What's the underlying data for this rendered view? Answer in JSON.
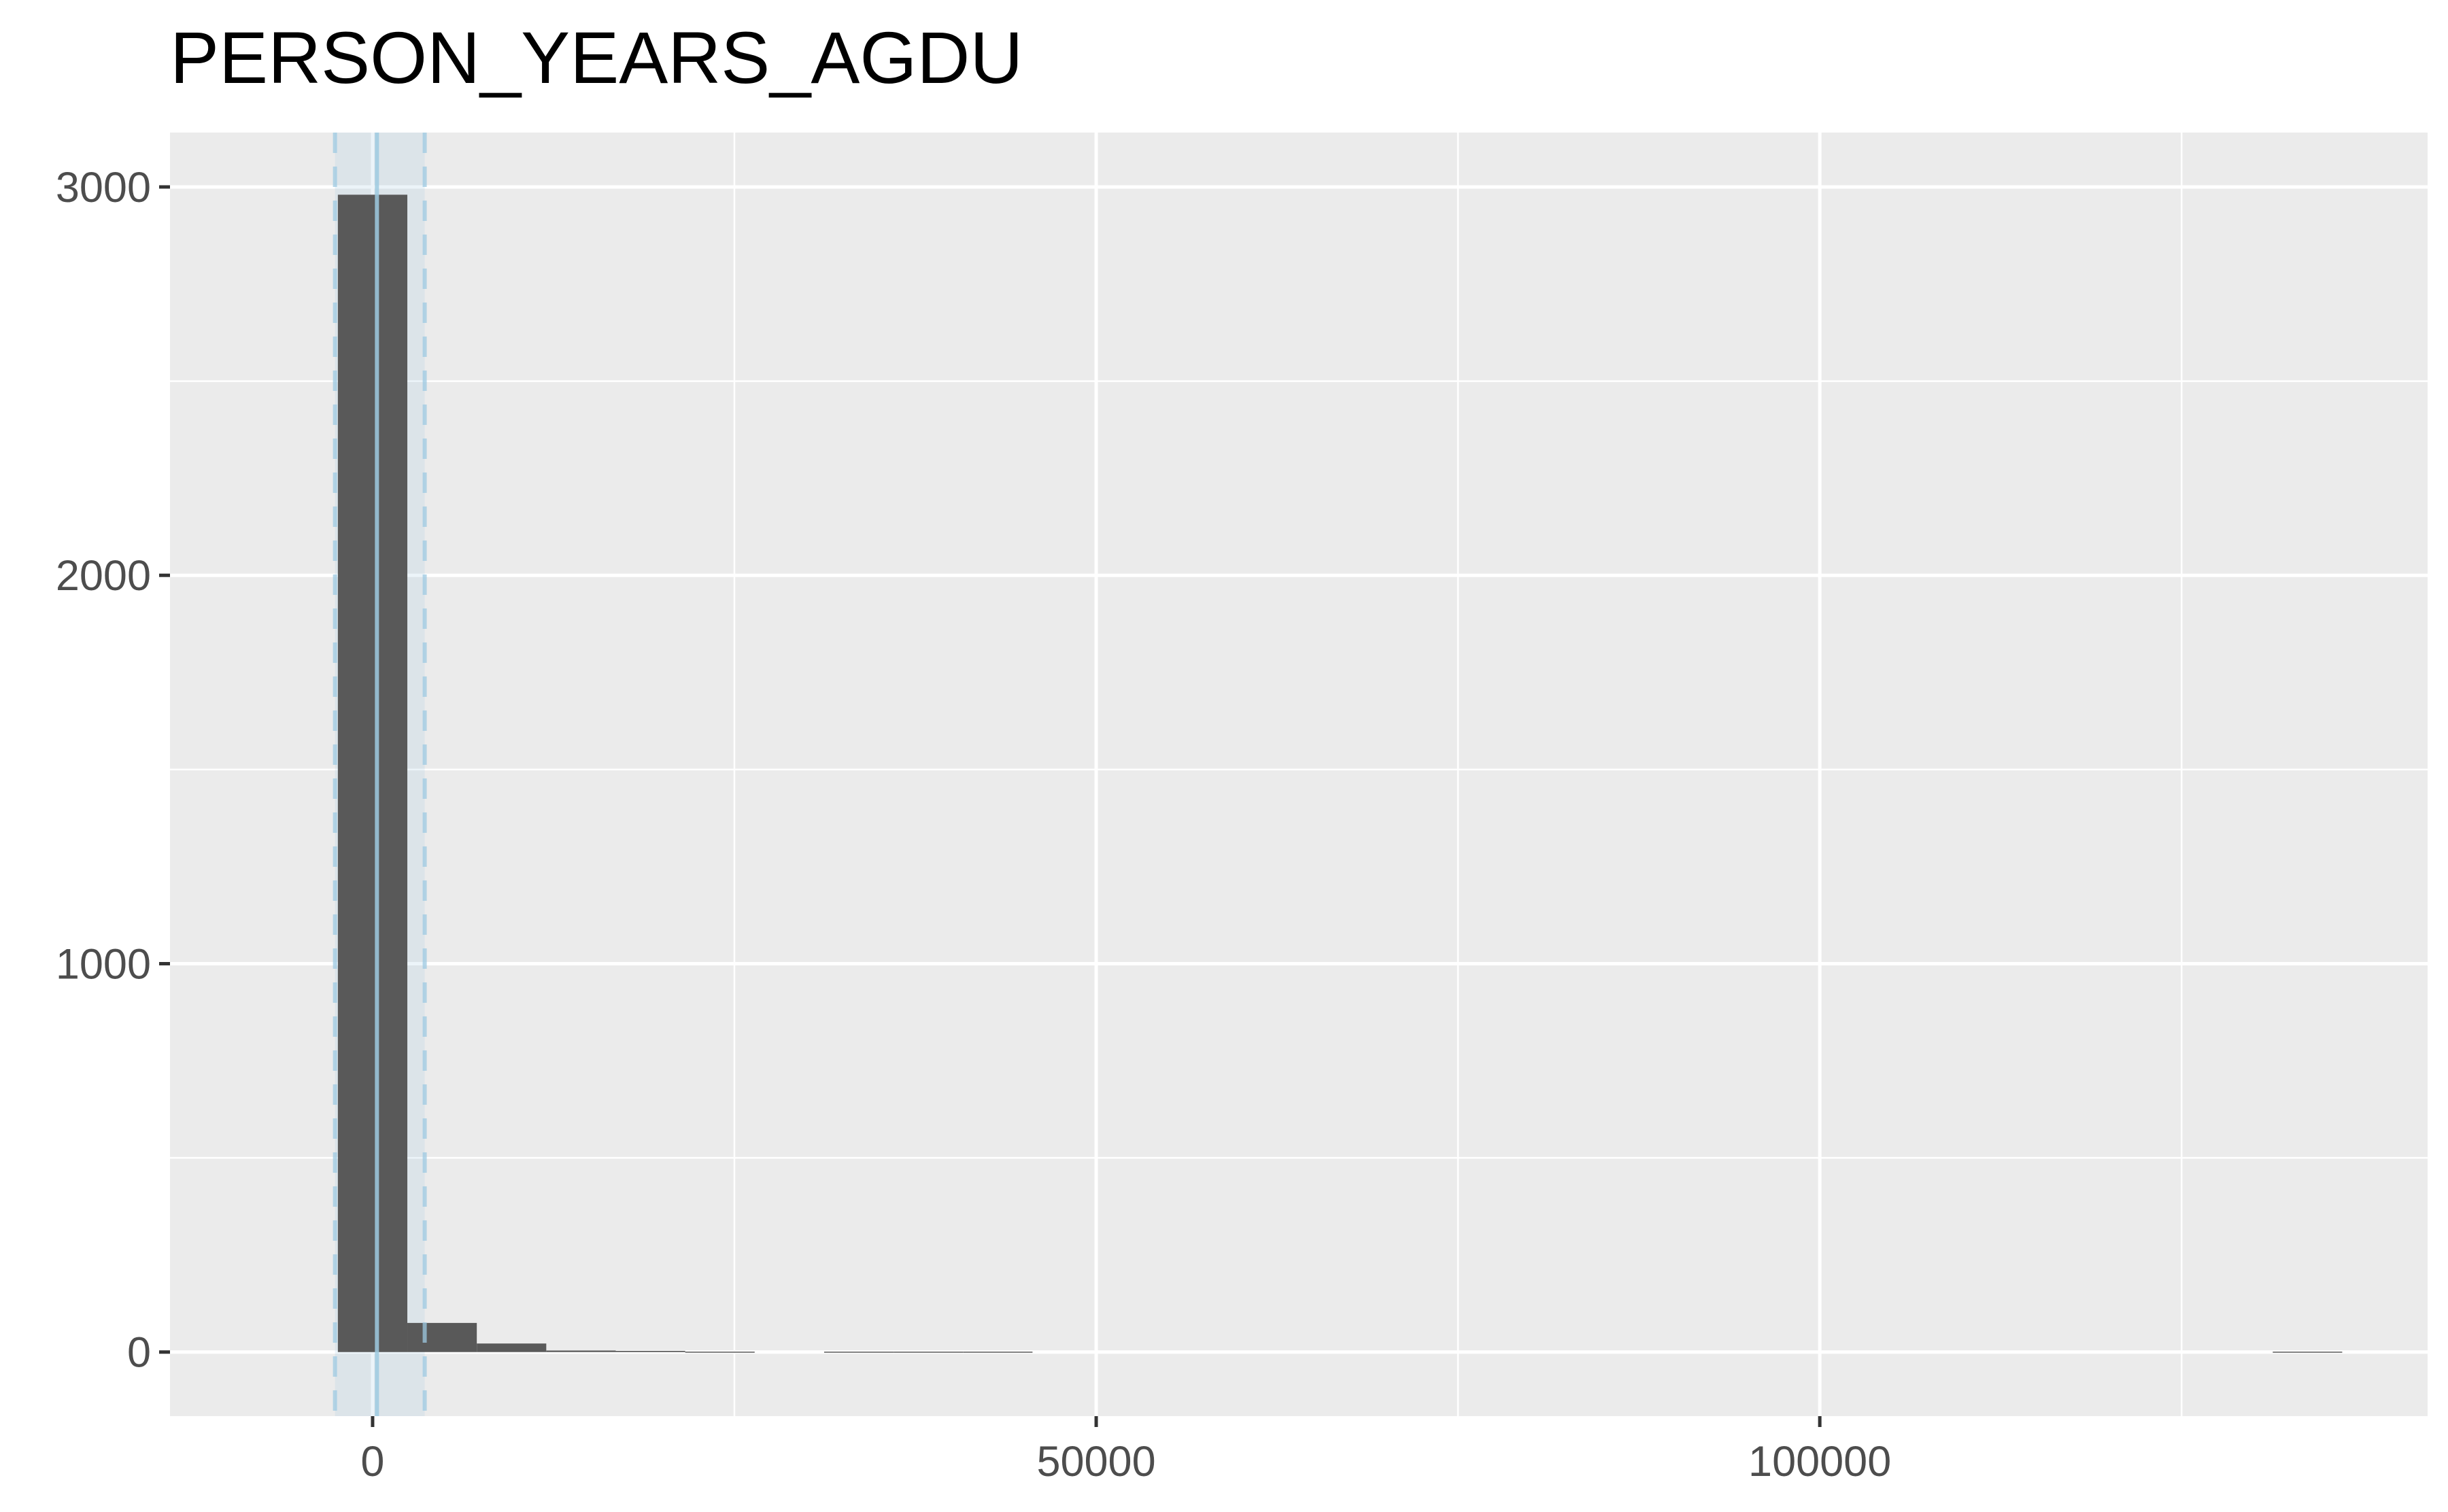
{
  "chart_data": {
    "type": "bar",
    "title": "PERSON_YEARS_AGDU",
    "xlabel": "",
    "ylabel": "",
    "xlim": [
      -14000,
      142000
    ],
    "ylim": [
      -165,
      3140
    ],
    "x_ticks": [
      0,
      50000,
      100000
    ],
    "y_ticks": [
      0,
      1000,
      2000,
      3000
    ],
    "x_tick_labels": [
      "0",
      "50000",
      "100000"
    ],
    "y_tick_labels": [
      "0",
      "1000",
      "2000",
      "3000"
    ],
    "grid": true,
    "background_color": "#ebebeb",
    "bar_color": "#595959",
    "bins": [
      {
        "x0": -2400,
        "x1": 2400,
        "count": 2980
      },
      {
        "x0": 2400,
        "x1": 7200,
        "count": 75
      },
      {
        "x0": 7200,
        "x1": 12000,
        "count": 22
      },
      {
        "x0": 12000,
        "x1": 16800,
        "count": 4
      },
      {
        "x0": 16800,
        "x1": 21600,
        "count": 3
      },
      {
        "x0": 21600,
        "x1": 26400,
        "count": 1
      },
      {
        "x0": 31200,
        "x1": 36000,
        "count": 1
      },
      {
        "x0": 36000,
        "x1": 40800,
        "count": 1
      },
      {
        "x0": 40800,
        "x1": 45600,
        "count": 1
      },
      {
        "x0": 131300,
        "x1": 136100,
        "count": 1
      }
    ],
    "mean_line": {
      "x": 300,
      "color": "#9ecae1"
    },
    "band": {
      "x0": -2600,
      "x1": 3600,
      "color": "#9ecae1"
    }
  }
}
